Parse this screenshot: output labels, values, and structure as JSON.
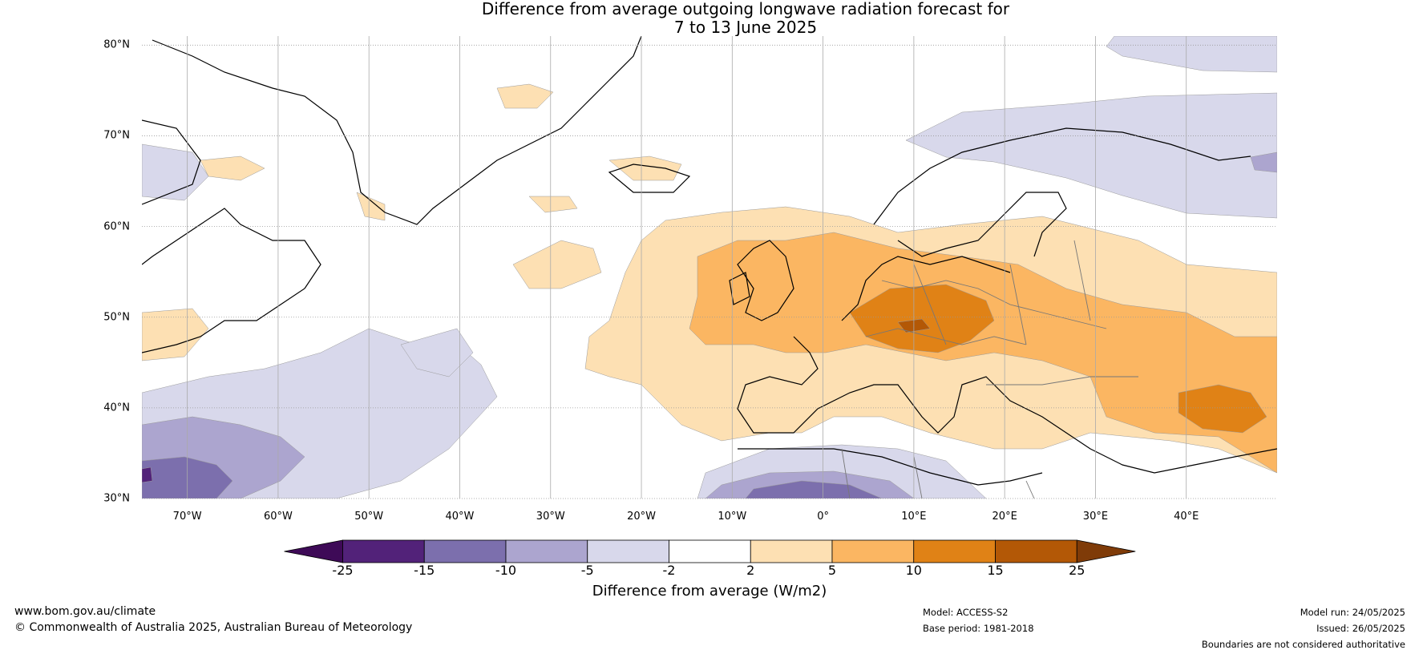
{
  "title": {
    "line1": "Difference from average outgoing longwave radiation forecast for",
    "line2": "7 to 13 June 2025"
  },
  "map": {
    "extent": {
      "lon_min": -75,
      "lon_max": 50,
      "lat_min": 30,
      "lat_max": 81
    },
    "lat_labels": [
      {
        "value": 80,
        "text": "80°N"
      },
      {
        "value": 70,
        "text": "70°N"
      },
      {
        "value": 60,
        "text": "60°N"
      },
      {
        "value": 50,
        "text": "50°N"
      },
      {
        "value": 40,
        "text": "40°N"
      },
      {
        "value": 30,
        "text": "30°N"
      }
    ],
    "lon_labels": [
      {
        "value": -70,
        "text": "70°W"
      },
      {
        "value": -60,
        "text": "60°W"
      },
      {
        "value": -50,
        "text": "50°W"
      },
      {
        "value": -40,
        "text": "40°W"
      },
      {
        "value": -30,
        "text": "30°W"
      },
      {
        "value": -20,
        "text": "20°W"
      },
      {
        "value": -10,
        "text": "10°W"
      },
      {
        "value": 0,
        "text": "0°"
      },
      {
        "value": 10,
        "text": "10°E"
      },
      {
        "value": 20,
        "text": "20°E"
      },
      {
        "value": 30,
        "text": "30°E"
      },
      {
        "value": 40,
        "text": "40°E"
      }
    ]
  },
  "colorbar": {
    "title": "Difference from average (W/m2)",
    "ticks": [
      "-25",
      "-15",
      "-10",
      "-5",
      "-2",
      "2",
      "5",
      "10",
      "15",
      "25"
    ],
    "colors": [
      "#522279",
      "#7c6fad",
      "#aca5cf",
      "#d8d8eb",
      "#ffffff",
      "#fde0b3",
      "#fbb662",
      "#e08216",
      "#b35806"
    ],
    "under_color": "#3e0a57",
    "over_color": "#7f3b08"
  },
  "footer": {
    "website": "www.bom.gov.au/climate",
    "copyright": "© Commonwealth of Australia 2025, Australian Bureau of Meteorology",
    "model": "Model: ACCESS-S2",
    "base_period": "Base period: 1981-2018",
    "model_run": "Model run: 24/05/2025",
    "issued": "Issued: 26/05/2025",
    "disclaimer": "Boundaries are not considered authoritative"
  }
}
